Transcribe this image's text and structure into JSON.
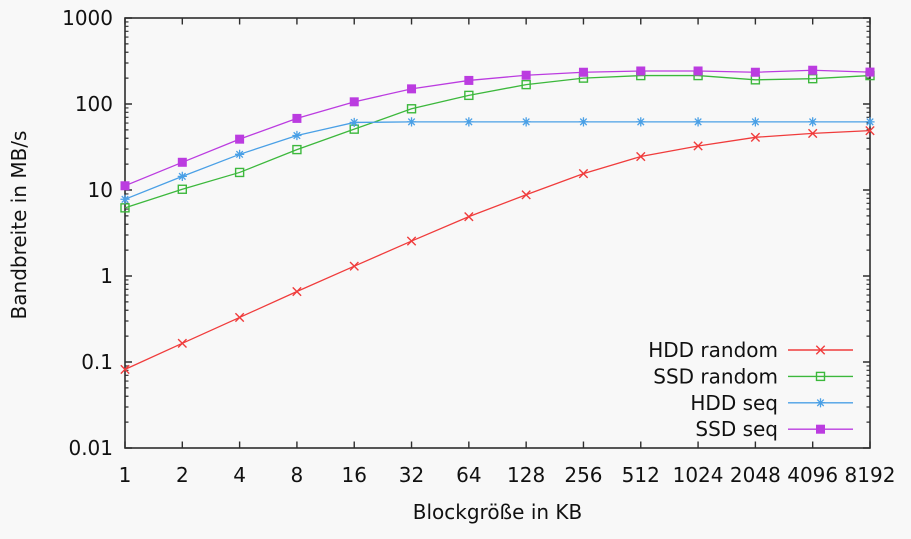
{
  "page": {
    "background": "#f8f8f8"
  },
  "chart_data": {
    "type": "line",
    "title": "",
    "xlabel": "Blockgröße in KB",
    "ylabel": "Bandbreite in MB/s",
    "x_scale": "log2",
    "y_scale": "log10",
    "grid": false,
    "legend_position": "inside-bottom-right",
    "axis_color": "#2e2e2e",
    "text_color": "#111111",
    "categories": [
      1,
      2,
      4,
      8,
      16,
      32,
      64,
      128,
      256,
      512,
      1024,
      2048,
      4096,
      8192
    ],
    "x_tick_labels": [
      "1",
      "2",
      "4",
      "8",
      "16",
      "32",
      "64",
      "128",
      "256",
      "512",
      "1024",
      "2048",
      "4096",
      "8192"
    ],
    "ylim": [
      0.01,
      1000
    ],
    "y_ticks": [
      0.01,
      0.1,
      1,
      10,
      100,
      1000
    ],
    "y_tick_labels": [
      "0.01",
      "0.1",
      "1",
      "10",
      "100",
      "1000"
    ],
    "series": [
      {
        "name": "HDD random",
        "color": "#f03c3c",
        "marker": "cross",
        "values": [
          0.082,
          0.165,
          0.33,
          0.66,
          1.3,
          2.55,
          4.9,
          8.8,
          15.5,
          24.5,
          32.5,
          41,
          45.5,
          49
        ]
      },
      {
        "name": "SSD random",
        "color": "#3cb83c",
        "marker": "open-square",
        "values": [
          6.2,
          10.2,
          16,
          29.5,
          51,
          88,
          126,
          168,
          200,
          214,
          214,
          191,
          197,
          214
        ]
      },
      {
        "name": "HDD seq",
        "color": "#4aa0e6",
        "marker": "asterisk",
        "values": [
          7.8,
          14.4,
          26,
          43,
          61,
          62,
          62,
          62,
          62,
          62,
          62,
          62,
          62,
          62
        ]
      },
      {
        "name": "SSD seq",
        "color": "#bb3ce0",
        "marker": "filled-square",
        "values": [
          11.2,
          21,
          39,
          68,
          106,
          150,
          188,
          216,
          234,
          242,
          242,
          234,
          247,
          235
        ]
      }
    ]
  }
}
